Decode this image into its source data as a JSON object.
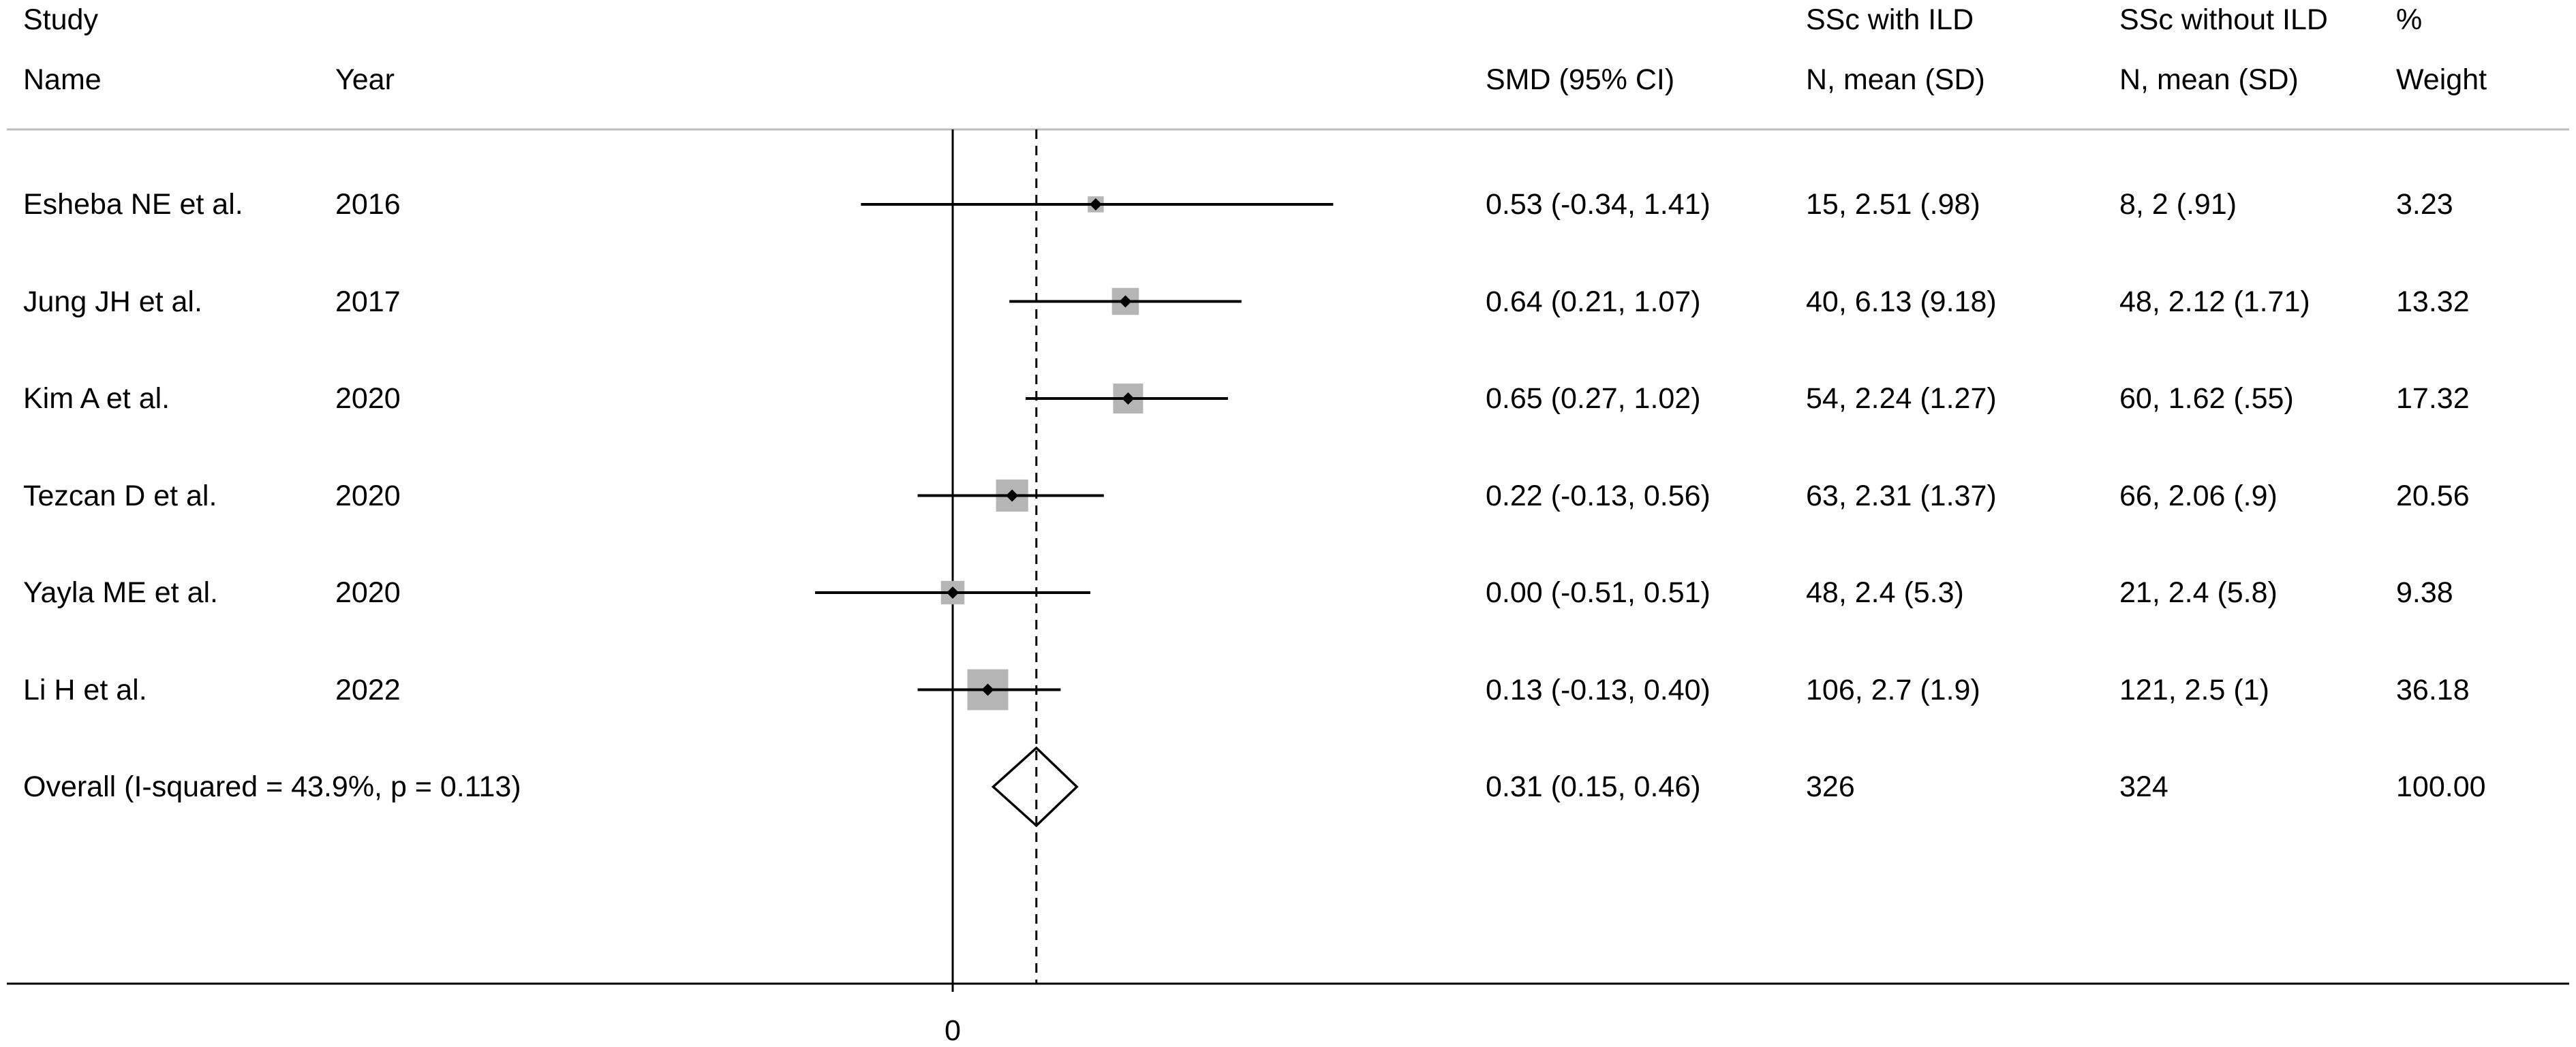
{
  "header": {
    "study_label": "Study",
    "name_label": "Name",
    "year_label": "Year",
    "smd_label": "SMD (95% CI)",
    "group1_label": "SSc with ILD",
    "group1_sub": "N, mean (SD)",
    "group2_label": "SSc without ILD",
    "group2_sub": "N, mean (SD)",
    "weight_label1": "%",
    "weight_label2": "Weight"
  },
  "chart_data": {
    "type": "forest",
    "measure": "SMD",
    "null_line": 0,
    "xlim": [
      -1.41,
      1.41
    ],
    "x_ticks": [
      0
    ],
    "x_tick_labels": [
      "0"
    ],
    "studies": [
      {
        "name": "Esheba NE et al.",
        "year": "2016",
        "smd": 0.53,
        "lo": -0.34,
        "hi": 1.41,
        "ci_text": "0.53 (-0.34, 1.41)",
        "g1": "15, 2.51 (.98)",
        "g2": "8, 2 (.91)",
        "weight": 3.23,
        "weight_text": "3.23"
      },
      {
        "name": "Jung JH et al.",
        "year": "2017",
        "smd": 0.64,
        "lo": 0.21,
        "hi": 1.07,
        "ci_text": "0.64 (0.21, 1.07)",
        "g1": "40, 6.13 (9.18)",
        "g2": "48, 2.12 (1.71)",
        "weight": 13.32,
        "weight_text": "13.32"
      },
      {
        "name": "Kim A et al.",
        "year": "2020",
        "smd": 0.65,
        "lo": 0.27,
        "hi": 1.02,
        "ci_text": "0.65 (0.27, 1.02)",
        "g1": "54, 2.24 (1.27)",
        "g2": "60, 1.62 (.55)",
        "weight": 17.32,
        "weight_text": "17.32"
      },
      {
        "name": "Tezcan D et al.",
        "year": "2020",
        "smd": 0.22,
        "lo": -0.13,
        "hi": 0.56,
        "ci_text": "0.22 (-0.13, 0.56)",
        "g1": "63, 2.31 (1.37)",
        "g2": "66, 2.06 (.9)",
        "weight": 20.56,
        "weight_text": "20.56"
      },
      {
        "name": "Yayla ME et al.",
        "year": "2020",
        "smd": 0.0,
        "lo": -0.51,
        "hi": 0.51,
        "ci_text": "0.00 (-0.51, 0.51)",
        "g1": "48, 2.4 (5.3)",
        "g2": "21, 2.4 (5.8)",
        "weight": 9.38,
        "weight_text": "9.38"
      },
      {
        "name": "Li H et al.",
        "year": "2022",
        "smd": 0.13,
        "lo": -0.13,
        "hi": 0.4,
        "ci_text": "0.13 (-0.13, 0.40)",
        "g1": "106, 2.7 (1.9)",
        "g2": "121, 2.5 (1)",
        "weight": 36.18,
        "weight_text": "36.18"
      }
    ],
    "overall": {
      "label": "Overall  (I-squared = 43.9%, p = 0.113)",
      "smd": 0.31,
      "lo": 0.15,
      "hi": 0.46,
      "ci_text": "0.31 (0.15, 0.46)",
      "g1": "326",
      "g2": "324",
      "weight_text": "100.00"
    },
    "colors": {
      "line": "#000000",
      "box": "#b5b5b5",
      "separator": "#bdbdbd"
    }
  }
}
